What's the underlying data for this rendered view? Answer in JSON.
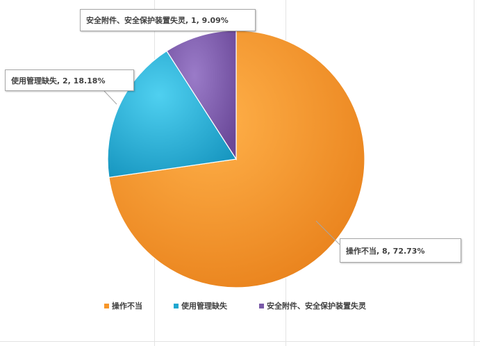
{
  "chart_data": {
    "type": "pie",
    "title": "",
    "slices": [
      {
        "label": "操作不当",
        "value": 8,
        "percent": "72.73%",
        "color": "#f7962a"
      },
      {
        "label": "使用管理缺失",
        "value": 2,
        "percent": "18.18%",
        "color": "#1fa7d0"
      },
      {
        "label": "安全附件、安全保护装置失灵",
        "value": 1,
        "percent": "9.09%",
        "color": "#7a5aa8"
      }
    ],
    "data_labels": [
      "操作不当, 8, 72.73%",
      "使用管理缺失, 2, 18.18%",
      "安全附件、安全保护装置失灵, 1, 9.09%"
    ],
    "legend_position": "bottom",
    "legend": [
      "操作不当",
      "使用管理缺失",
      "安全附件、安全保护装置失灵"
    ]
  }
}
